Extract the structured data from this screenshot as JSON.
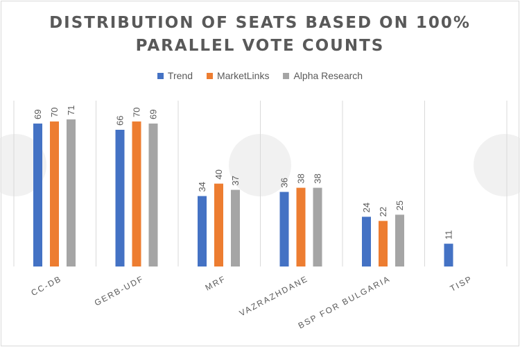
{
  "chart_data": {
    "type": "bar",
    "title_lines": [
      "DISTRIBUTION OF SEATS BASED ON 100%",
      "PARALLEL VOTE COUNTS"
    ],
    "categories": [
      "CC-DB",
      "GERB-UDF",
      "MRF",
      "VAZRAZHDANE",
      "BSP FOR BULGARIA",
      "TISP"
    ],
    "series": [
      {
        "name": "Trend",
        "color": "#4472c4",
        "values": [
          69,
          66,
          34,
          36,
          24,
          11
        ]
      },
      {
        "name": "MarketLinks",
        "color": "#ed7d31",
        "values": [
          70,
          70,
          40,
          38,
          22,
          null
        ]
      },
      {
        "name": "Alpha Research",
        "color": "#a5a5a5",
        "values": [
          71,
          69,
          37,
          38,
          25,
          null
        ]
      }
    ],
    "ylim": [
      0,
      80
    ],
    "grid": "vertical category separators",
    "legend": "top",
    "data_labels": true
  }
}
